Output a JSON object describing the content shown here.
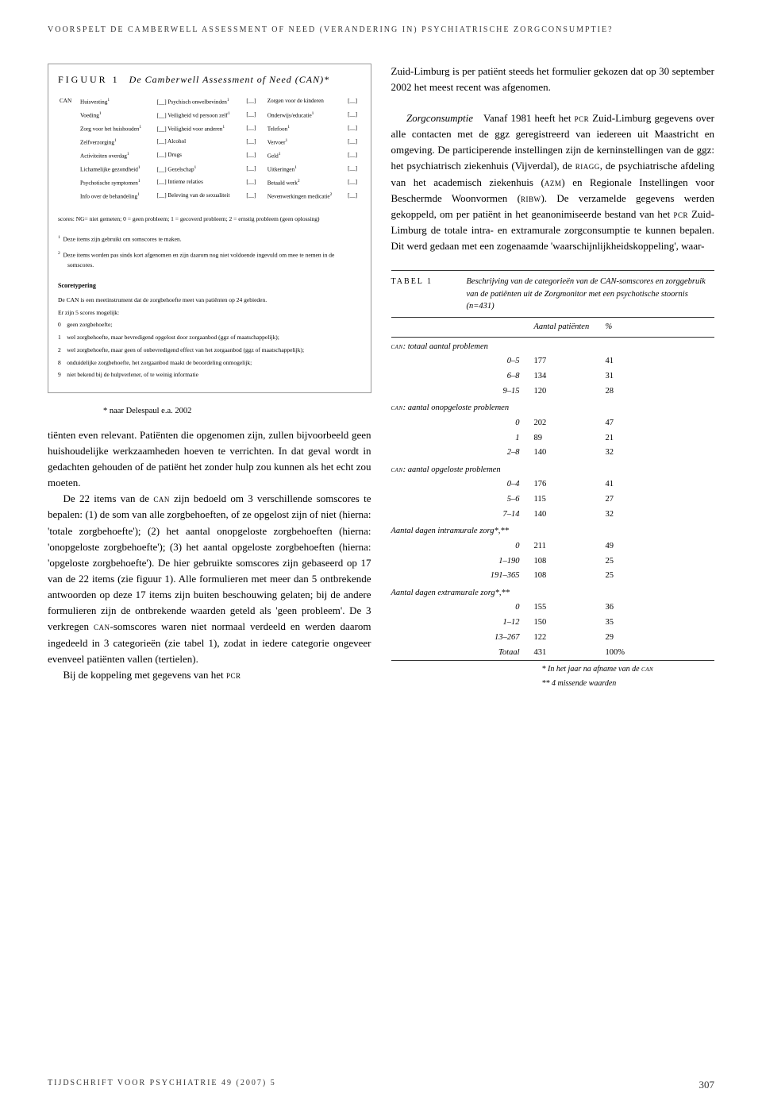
{
  "runningHeader": "VOORSPELT DE CAMBERWELL ASSESSMENT OF NEED (VERANDERING IN) PSYCHIATRISCHE ZORGCONSUMPTIE?",
  "figure": {
    "labelPrefix": "FIGUUR 1",
    "title": "De Camberwell Assessment of Need (CAN)*",
    "canLabel": "CAN",
    "rows": [
      {
        "c1": "Huisvesting",
        "s1": "1",
        "c2": "Psychisch onwelbevinden",
        "s2": "1",
        "c3": "Zorgen voor de kinderen"
      },
      {
        "c1": "Voeding",
        "s1": "1",
        "c2": "Veiligheid vd persoon zelf",
        "s2": "1",
        "c3": "Onderwijs/educatie",
        "s3": "1"
      },
      {
        "c1": "Zorg voor het huishouden",
        "s1": "1",
        "c2": "Veiligheid voor anderen",
        "s2": "1",
        "c3": "Telefoon",
        "s3": "1"
      },
      {
        "c1": "Zelfverzorging",
        "s1": "1",
        "c2": "Alcohol",
        "c3": "Vervoer",
        "s3": "1"
      },
      {
        "c1": "Activiteiten overdag",
        "s1": "1",
        "c2": "Drugs",
        "c3": "Geld",
        "s3": "1"
      },
      {
        "c1": "Lichamelijke gezondheid",
        "s1": "1",
        "c2": "Gezelschap",
        "s2": "1",
        "c3": "Uitkeringen",
        "s3": "1"
      },
      {
        "c1": "Psychotische symptomen",
        "s1": "1",
        "c2": "Intieme relaties",
        "c3": "Betaald werk",
        "s3": "2"
      },
      {
        "c1": "Info over de behandeling",
        "s1": "1",
        "c2": "Beleving van de sexualiteit",
        "c3": "Nevenwerkingen medicatie",
        "s3": "2"
      }
    ],
    "scoresLine": "scores: NG= niet gemeten; 0 = geen probleem; 1 = gecoverd probleem; 2 = ernstig probleem (geen oplossing)",
    "footnotes": [
      {
        "n": "1",
        "text": "Deze items zijn gebruikt om somscores te maken."
      },
      {
        "n": "2",
        "text": "Deze items worden pas sinds kort afgenomen en zijn daarom nog niet voldoende ingevuld om mee te nemen in de somscores."
      }
    ],
    "scoretypingTitle": "Scoretypering",
    "scoretypingIntro": "De CAN is een meetinstrument dat de zorgbehoefte meet van patiënten op 24 gebieden.",
    "scoretypingLine2": "Er zijn 5 scores mogelijk:",
    "scoretypingList": [
      {
        "n": "0",
        "text": "geen zorgbehoefte;"
      },
      {
        "n": "1",
        "text": "wel zorgbehoefte, maar bevredigend opgelost door zorgaanbod (ggz of maatschappelijk);"
      },
      {
        "n": "2",
        "text": "wel zorgbehoefte, maar geen of onbevredigend effect van het zorgaanbod (ggz of maatschappelijk);"
      },
      {
        "n": "8",
        "text": "onduidelijke zorgbehoefte, het zorgaanbod maakt de beoordeling onmogelijk;"
      },
      {
        "n": "9",
        "text": "niet bekend bij de hulpverlener, of te weinig informatie"
      }
    ]
  },
  "attribution": "* naar Delespaul e.a. 2002",
  "leftBody": [
    "tiënten even relevant. Patiënten die opgenomen zijn, zullen bijvoorbeeld geen huishoudelijke werkzaamheden hoeven te verrichten. In dat geval wordt in gedachten gehouden of de patiënt het zonder hulp zou kunnen als het echt zou moeten.",
    "De 22 items van de CAN zijn bedoeld om 3 verschillende somscores te bepalen: (1) de som van alle zorgbehoeften, of ze opgelost zijn of niet (hierna: 'totale zorgbehoefte'); (2) het aantal onopgeloste zorgbehoeften (hierna: 'onopgeloste zorgbehoefte'); (3) het aantal opgeloste zorgbehoeften (hierna: 'opgeloste zorgbehoefte'). De hier gebruikte somscores zijn gebaseerd op 17 van de 22 items (zie figuur 1). Alle formulieren met meer dan 5 ontbrekende antwoorden op deze 17 items zijn buiten beschouwing gelaten; bij de andere formulieren zijn de ontbrekende waarden geteld als 'geen probleem'. De 3 verkregen CAN-somscores waren niet normaal verdeeld en werden daarom ingedeeld in 3 categorieën (zie tabel 1), zodat in iedere categorie ongeveer evenveel patiënten vallen (tertielen).",
    "Bij de koppeling met gegevens van het PCR"
  ],
  "rightBody1": "Zuid-Limburg is per patiënt steeds het formulier gekozen dat op 30 september 2002 het meest recent was afgenomen.",
  "rightSubhead": "Zorgconsumptie",
  "rightBody2": "Vanaf 1981 heeft het PCR Zuid-Limburg gegevens over alle contacten met de ggz geregistreerd van iedereen uit Maastricht en omgeving. De participerende instellingen zijn de kerninstellingen van de ggz: het psychiatrisch ziekenhuis (Vijverdal), de RIAGG, de psychiatrische afdeling van het academisch ziekenhuis (AZM) en Regionale Instellingen voor Beschermde Woonvormen (RIBW). De verzamelde gegevens werden gekoppeld, om per patiënt in het geanonimiseerde bestand van het PCR Zuid-Limburg de totale intra- en extramurale zorgconsumptie te kunnen bepalen. Dit werd gedaan met een zogenaamde 'waarschijnlijkheidskoppeling', waar-",
  "tabel": {
    "label": "TABEL 1",
    "caption": "Beschrijving van de categorieën van de CAN-somscores en zorggebruik van de patiënten uit de Zorgmonitor met een psychotische stoornis (n=431)",
    "colHead1": "Aantal patiënten",
    "colHead2": "%",
    "sections": [
      {
        "head": "CAN: totaal aantal problemen",
        "rows": [
          {
            "cat": "0–5",
            "aantal": "177",
            "pct": "41"
          },
          {
            "cat": "6–8",
            "aantal": "134",
            "pct": "31"
          },
          {
            "cat": "9–15",
            "aantal": "120",
            "pct": "28"
          }
        ]
      },
      {
        "head": "CAN: aantal onopgeloste problemen",
        "rows": [
          {
            "cat": "0",
            "aantal": "202",
            "pct": "47"
          },
          {
            "cat": "1",
            "aantal": "89",
            "pct": "21"
          },
          {
            "cat": "2–8",
            "aantal": "140",
            "pct": "32"
          }
        ]
      },
      {
        "head": "CAN: aantal opgeloste problemen",
        "rows": [
          {
            "cat": "0–4",
            "aantal": "176",
            "pct": "41"
          },
          {
            "cat": "5–6",
            "aantal": "115",
            "pct": "27"
          },
          {
            "cat": "7–14",
            "aantal": "140",
            "pct": "32"
          }
        ]
      },
      {
        "head": "Aantal dagen intramurale zorg*,**",
        "rows": [
          {
            "cat": "0",
            "aantal": "211",
            "pct": "49"
          },
          {
            "cat": "1–190",
            "aantal": "108",
            "pct": "25"
          },
          {
            "cat": "191–365",
            "aantal": "108",
            "pct": "25"
          }
        ]
      },
      {
        "head": "Aantal dagen extramurale zorg*,**",
        "rows": [
          {
            "cat": "0",
            "aantal": "155",
            "pct": "36"
          },
          {
            "cat": "1–12",
            "aantal": "150",
            "pct": "35"
          },
          {
            "cat": "13–267",
            "aantal": "122",
            "pct": "29"
          },
          {
            "cat": "Totaal",
            "aantal": "431",
            "pct": "100%"
          }
        ]
      }
    ],
    "notes": [
      "* In het jaar na afname van de CAN",
      "** 4 missende waarden"
    ]
  },
  "footerJournal": "TIJDSCHRIFT VOOR PSYCHIATRIE 49 (2007) 5",
  "footerPage": "307",
  "colors": {
    "text": "#000000",
    "background": "#ffffff",
    "rule": "#333333",
    "figureBorder": "#999999"
  },
  "typography": {
    "bodyFontSizePt": 10,
    "figureFontSizePt": 6,
    "headerLetterSpacing": 2
  }
}
